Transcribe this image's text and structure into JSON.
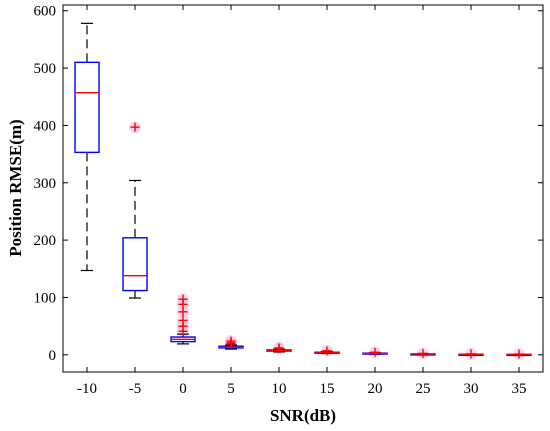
{
  "chart_data": {
    "type": "boxplot",
    "xlabel": "SNR(dB)",
    "ylabel": "Position RMSE(m)",
    "ylim": [
      -30,
      610
    ],
    "yticks": [
      0,
      100,
      200,
      300,
      400,
      500,
      600
    ],
    "grid": false,
    "legend": "none",
    "categories": [
      "-10",
      "-5",
      "0",
      "5",
      "10",
      "15",
      "20",
      "25",
      "30",
      "35"
    ],
    "boxes": [
      {
        "category": "-10",
        "whisker_low": 147,
        "q1": 353,
        "median": 457,
        "q3": 510,
        "whisker_high": 578,
        "outliers": []
      },
      {
        "category": "-5",
        "whisker_low": 99,
        "q1": 112,
        "median": 138,
        "q3": 204,
        "whisker_high": 304,
        "outliers": [
          397
        ]
      },
      {
        "category": "0",
        "whisker_low": 19,
        "q1": 23,
        "median": 27,
        "q3": 31,
        "whisker_high": 36,
        "outliers": [
          41,
          50,
          60,
          75,
          88,
          97
        ]
      },
      {
        "category": "5",
        "whisker_low": 10,
        "q1": 12,
        "median": 13,
        "q3": 15,
        "whisker_high": 17,
        "outliers": [
          19,
          21,
          24
        ]
      },
      {
        "category": "10",
        "whisker_low": 5,
        "q1": 6.5,
        "median": 7.5,
        "q3": 8.5,
        "whisker_high": 10,
        "outliers": [
          11,
          12
        ]
      },
      {
        "category": "15",
        "whisker_low": 2.5,
        "q1": 3.5,
        "median": 4,
        "q3": 4.5,
        "whisker_high": 5.5,
        "outliers": [
          7
        ]
      },
      {
        "category": "20",
        "whisker_low": 1,
        "q1": 2,
        "median": 2.5,
        "q3": 3,
        "whisker_high": 3.5,
        "outliers": [
          4.5
        ]
      },
      {
        "category": "25",
        "whisker_low": 0.5,
        "q1": 1,
        "median": 1.2,
        "q3": 1.5,
        "whisker_high": 2,
        "outliers": [
          2.5
        ]
      },
      {
        "category": "30",
        "whisker_low": 0.3,
        "q1": 0.6,
        "median": 0.8,
        "q3": 1,
        "whisker_high": 1.3,
        "outliers": [
          1.6
        ]
      },
      {
        "category": "35",
        "whisker_low": 0.2,
        "q1": 0.4,
        "median": 0.5,
        "q3": 0.7,
        "whisker_high": 0.9,
        "outliers": [
          1.2
        ]
      }
    ],
    "colors": {
      "box": "#0000ff",
      "median": "#ff0000",
      "whisker": "#000000",
      "outlier": "#ff0000",
      "outlier_halo": "#f5c6e8",
      "axis": "#000000"
    }
  }
}
